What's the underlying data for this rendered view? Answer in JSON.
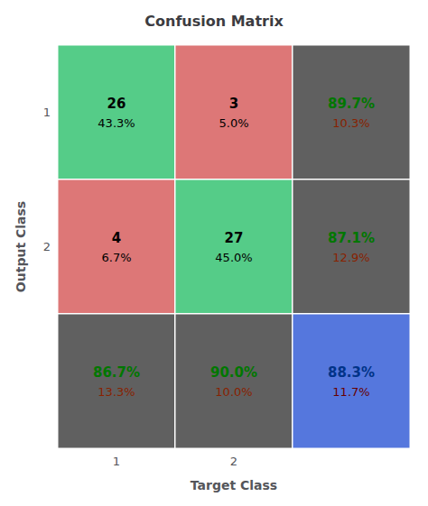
{
  "chart_data": {
    "type": "heatmap",
    "title": "Confusion Matrix",
    "x_label": "Target Class",
    "y_label": "Output Class",
    "x_categories": [
      "1",
      "2",
      null
    ],
    "y_categories": [
      "1",
      "2",
      null
    ],
    "values": [
      [
        26,
        3,
        89.7
      ],
      [
        4,
        27,
        87.1
      ],
      [
        86.7,
        90.0,
        88.3
      ]
    ],
    "value_labels": [
      [
        "26",
        "3",
        "89.7%"
      ],
      [
        "4",
        "27",
        "87.1%"
      ],
      [
        "86.7%",
        "90.0%",
        "88.3%"
      ]
    ],
    "shares": [
      [
        43.3,
        5.0,
        10.3
      ],
      [
        6.7,
        45.0,
        12.9
      ],
      [
        13.3,
        10.0,
        11.7
      ]
    ],
    "share_labels": [
      [
        "43.3%",
        "5.0%",
        "10.3%"
      ],
      [
        "6.7%",
        "45.0%",
        "12.9%"
      ],
      [
        "13.3%",
        "10.0%",
        "11.7%"
      ]
    ],
    "colors": [
      [
        "#55CC88",
        "#DD7777",
        "#606060"
      ],
      [
        "#DD7777",
        "#55CC88",
        "#606060"
      ],
      [
        "#606060",
        "#606060",
        "#5577DD"
      ]
    ],
    "label_colors": [
      [
        "#000000",
        "#000000",
        "#007700"
      ],
      [
        "#000000",
        "#000000",
        "#007700"
      ],
      [
        "#007700",
        "#007700",
        "#003388"
      ]
    ],
    "share_colors": [
      [
        "#000000",
        "#000000",
        "#882200"
      ],
      [
        "#000000",
        "#000000",
        "#882200"
      ],
      [
        "#882200",
        "#882200",
        "#660000"
      ]
    ],
    "tick_labels": true,
    "grid": false
  }
}
